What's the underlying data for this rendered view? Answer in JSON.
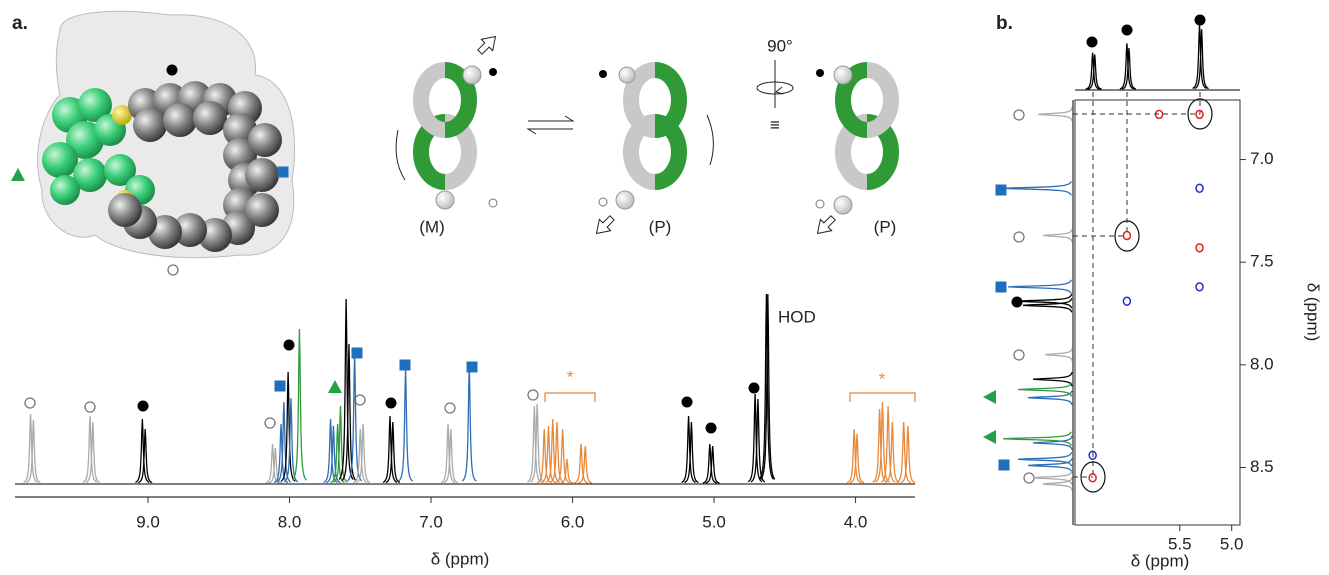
{
  "panel_a": {
    "label": "a.",
    "rotation": "90°",
    "equivalence": "≡",
    "conformers": [
      "(M)",
      "(P)",
      "(P)"
    ]
  },
  "panel_b": {
    "label": "b."
  },
  "chart_data": [
    {
      "type": "spectrum",
      "xlabel": "δ (ppm)",
      "xlim": [
        9.94,
        3.58
      ],
      "ylim": [
        0,
        190
      ],
      "xticks": [
        {
          "value": 9,
          "label": "9.0"
        },
        {
          "value": 8,
          "label": "8.0"
        },
        {
          "value": 7,
          "label": "7.0"
        },
        {
          "value": 6,
          "label": "6.0"
        },
        {
          "value": 5,
          "label": "5.0"
        },
        {
          "value": 4,
          "label": "4.0"
        }
      ],
      "annotations": [
        "HOD",
        "*",
        "*"
      ],
      "x": [
        9.83,
        9.81,
        9.41,
        9.39,
        9.04,
        9.02,
        8.12,
        8.1,
        8.06,
        8.04,
        8.01,
        7.99,
        7.93,
        7.71,
        7.69,
        7.66,
        7.64,
        7.6,
        7.58,
        7.54,
        7.5,
        7.48,
        7.29,
        7.27,
        7.18,
        6.88,
        6.86,
        6.73,
        6.27,
        6.25,
        6.2,
        6.17,
        6.14,
        6.11,
        6.07,
        6.04,
        5.94,
        5.91,
        5.18,
        5.16,
        5.03,
        5.01,
        4.71,
        4.69,
        4.63,
        4.62,
        4.01,
        3.99,
        3.83,
        3.81,
        3.77,
        3.74,
        3.66,
        3.63
      ],
      "values": [
        70,
        64,
        68,
        62,
        65,
        55,
        40,
        36,
        60,
        82,
        112,
        86,
        155,
        65,
        58,
        60,
        78,
        185,
        140,
        130,
        55,
        60,
        68,
        62,
        115,
        60,
        55,
        118,
        78,
        80,
        55,
        58,
        65,
        62,
        55,
        25,
        40,
        38,
        68,
        62,
        40,
        38,
        90,
        85,
        190,
        190,
        55,
        50,
        75,
        82,
        78,
        62,
        62,
        58
      ],
      "colors": [
        "#aaaaaa",
        "#aaaaaa",
        "#aaaaaa",
        "#aaaaaa",
        "#000000",
        "#000000",
        "#aaaaaa",
        "#aaaaaa",
        "#2e6eb5",
        "#2e6eb5",
        "#000000",
        "#2e6eb5",
        "#2e9a3a",
        "#2e6eb5",
        "#2e6eb5",
        "#2e9a3a",
        "#2e9a3a",
        "#000000",
        "#000000",
        "#2e6eb5",
        "#aaaaaa",
        "#aaaaaa",
        "#000000",
        "#000000",
        "#2e6eb5",
        "#aaaaaa",
        "#aaaaaa",
        "#2e6eb5",
        "#aaaaaa",
        "#aaaaaa",
        "#e8883a",
        "#e8883a",
        "#e8883a",
        "#e8883a",
        "#e8883a",
        "#e8883a",
        "#e8883a",
        "#e8883a",
        "#000000",
        "#000000",
        "#000000",
        "#000000",
        "#000000",
        "#000000",
        "#000000",
        "#000000",
        "#e8883a",
        "#e8883a",
        "#e8883a",
        "#e8883a",
        "#e8883a",
        "#e8883a",
        "#e8883a",
        "#e8883a"
      ]
    },
    {
      "type": "contour",
      "xlabel": "δ (ppm)",
      "ylabel": "δ (ppm)",
      "xlim": [
        6.51,
        4.92
      ],
      "ylim": [
        6.71,
        8.78
      ],
      "xticks": [
        {
          "value": 5.5,
          "label": "5.5"
        },
        {
          "value": 5,
          "label": "5.0"
        }
      ],
      "yticks": [
        {
          "value": 7,
          "label": "7.0"
        },
        {
          "value": 7.5,
          "label": "7.5"
        },
        {
          "value": 8,
          "label": "8.0"
        },
        {
          "value": 8.5,
          "label": "8.5"
        }
      ],
      "x": [
        6.34,
        6.34,
        6.01,
        6.01,
        5.7,
        5.31,
        5.31,
        5.31,
        5.31
      ],
      "y": [
        8.55,
        8.44,
        7.37,
        7.69,
        6.78,
        6.78,
        7.14,
        7.43,
        7.62
      ],
      "colors": [
        "#e02020",
        "#2030d0",
        "#e02020",
        "#2030d0",
        "#e02020",
        "#e02020",
        "#2030d0",
        "#e02020",
        "#2030d0"
      ]
    },
    {
      "type": "projection-top",
      "ylim": [
        0,
        75
      ],
      "x": [
        6.34,
        6.32,
        6.01,
        5.99,
        5.31,
        5.29
      ],
      "values": [
        40,
        38,
        50,
        45,
        70,
        65
      ]
    },
    {
      "type": "projection-left",
      "xlim": [
        0,
        75
      ],
      "y": [
        6.78,
        7.14,
        7.37,
        7.62,
        7.69,
        7.71,
        7.95,
        8.07,
        8.12,
        8.16,
        8.36,
        8.38,
        8.46,
        8.49,
        8.55,
        8.58
      ],
      "values": [
        35,
        70,
        30,
        65,
        55,
        50,
        28,
        40,
        55,
        45,
        70,
        40,
        55,
        45,
        40,
        30
      ],
      "colors": [
        "#aaaaaa",
        "#2e6eb5",
        "#aaaaaa",
        "#2e6eb5",
        "#000000",
        "#000000",
        "#aaaaaa",
        "#000000",
        "#2e9a3a",
        "#2e6eb5",
        "#2e9a3a",
        "#2e6eb5",
        "#2e6eb5",
        "#2e6eb5",
        "#aaaaaa",
        "#aaaaaa"
      ]
    }
  ]
}
